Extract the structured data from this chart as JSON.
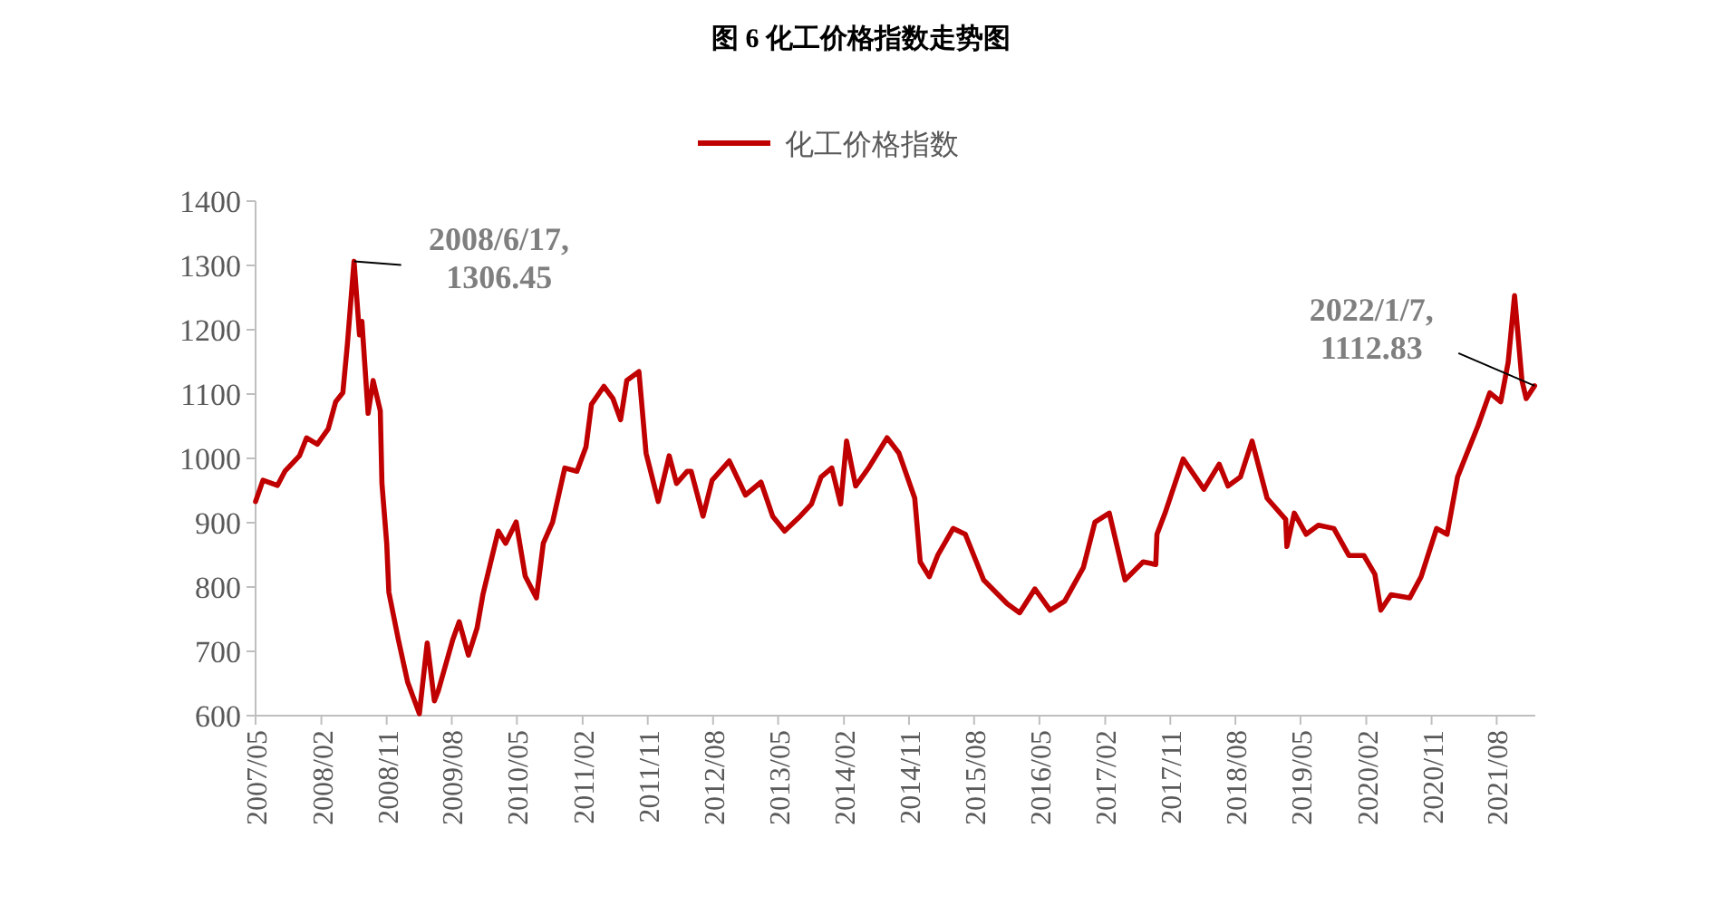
{
  "chart_data": {
    "type": "line",
    "title": "图 6 化工价格指数走势图",
    "x": [
      "2007-05-01",
      "2007-06-01",
      "2007-08-01",
      "2007-09-01",
      "2007-11-01",
      "2007-12-01",
      "2008-01-15",
      "2008-03-01",
      "2008-04-01",
      "2008-05-01",
      "2008-05-20",
      "2008-06-17",
      "2008-07-10",
      "2008-07-20",
      "2008-08-15",
      "2008-09-05",
      "2008-10-05",
      "2008-10-12",
      "2008-11-01",
      "2008-11-10",
      "2008-12-20",
      "2009-01-28",
      "2009-02-15",
      "2009-03-18",
      "2009-04-20",
      "2009-05-20",
      "2009-06-05",
      "2009-08-05",
      "2009-09-01",
      "2009-10-10",
      "2009-11-15",
      "2009-12-10",
      "2010-01-18",
      "2010-02-12",
      "2010-03-15",
      "2010-04-28",
      "2010-06-05",
      "2010-07-22",
      "2010-08-20",
      "2010-09-28",
      "2010-11-18",
      "2011-01-08",
      "2011-02-15",
      "2011-03-10",
      "2011-05-01",
      "2011-06-08",
      "2011-07-10",
      "2011-08-05",
      "2011-09-25",
      "2011-10-25",
      "2011-12-15",
      "2012-01-30",
      "2012-03-01",
      "2012-04-15",
      "2012-05-01",
      "2012-06-20",
      "2012-07-28",
      "2012-10-08",
      "2012-12-15",
      "2013-02-18",
      "2013-04-08",
      "2013-05-28",
      "2013-08-01",
      "2013-09-18",
      "2013-10-28",
      "2013-12-12",
      "2014-01-18",
      "2014-02-12",
      "2014-03-22",
      "2014-05-15",
      "2014-08-01",
      "2014-09-20",
      "2014-11-25",
      "2014-12-18",
      "2015-01-25",
      "2015-03-01",
      "2015-05-05",
      "2015-06-25",
      "2015-09-10",
      "2015-12-18",
      "2016-02-08",
      "2016-04-12",
      "2016-06-15",
      "2016-08-15",
      "2016-11-01",
      "2016-12-20",
      "2017-02-18",
      "2017-04-25",
      "2017-07-10",
      "2017-09-01",
      "2017-09-06",
      "2017-10-10",
      "2017-12-25",
      "2018-03-22",
      "2018-05-25",
      "2018-07-01",
      "2018-08-22",
      "2018-10-10",
      "2018-12-12",
      "2019-02-28",
      "2019-03-05",
      "2019-04-05",
      "2019-05-25",
      "2019-07-15",
      "2019-09-18",
      "2019-11-20",
      "2020-01-22",
      "2020-03-08",
      "2020-04-02",
      "2020-05-15",
      "2020-08-01",
      "2020-09-18",
      "2020-11-22",
      "2021-01-05",
      "2021-02-18",
      "2021-03-25",
      "2021-05-15",
      "2021-07-03",
      "2021-08-18",
      "2021-09-18",
      "2021-10-15",
      "2021-11-15",
      "2021-12-03",
      "2022-01-07"
    ],
    "series": [
      {
        "name": "化工价格指数",
        "color": "#c00000",
        "values": [
          933,
          966,
          958,
          980,
          1004,
          1032,
          1022,
          1046,
          1088,
          1102,
          1177,
          1306.45,
          1192,
          1213,
          1070,
          1121,
          1074,
          961,
          868,
          792,
          718,
          652,
          634,
          603,
          713,
          623,
          638,
          718,
          746,
          694,
          736,
          789,
          849,
          887,
          868,
          901,
          817,
          783,
          868,
          901,
          985,
          980,
          1018,
          1084,
          1112,
          1093,
          1060,
          1121,
          1135,
          1008,
          933,
          1004,
          961,
          980,
          980,
          910,
          966,
          996,
          943,
          963,
          910,
          887,
          910,
          929,
          971,
          985,
          929,
          1027,
          957,
          985,
          1032,
          1008,
          938,
          839,
          816,
          849,
          891,
          882,
          811,
          774,
          760,
          797,
          764,
          778,
          830,
          901,
          915,
          811,
          839,
          835,
          882,
          915,
          999,
          952,
          991,
          957,
          971,
          1027,
          938,
          905,
          863,
          915,
          882,
          896,
          891,
          849,
          849,
          820,
          764,
          788,
          783,
          816,
          891,
          882,
          971,
          1004,
          1051,
          1102,
          1088,
          1149,
          1253,
          1121,
          1093,
          1112.83
        ]
      }
    ],
    "xlim": [
      "2007-05-01",
      "2022-01-10"
    ],
    "xticks": [
      {
        "value": "2007-05",
        "label": "2007/05"
      },
      {
        "value": "2008-02",
        "label": "2008/02"
      },
      {
        "value": "2008-11",
        "label": "2008/11"
      },
      {
        "value": "2009-08",
        "label": "2009/08"
      },
      {
        "value": "2010-05",
        "label": "2010/05"
      },
      {
        "value": "2011-02",
        "label": "2011/02"
      },
      {
        "value": "2011-11",
        "label": "2011/11"
      },
      {
        "value": "2012-08",
        "label": "2012/08"
      },
      {
        "value": "2013-05",
        "label": "2013/05"
      },
      {
        "value": "2014-02",
        "label": "2014/02"
      },
      {
        "value": "2014-11",
        "label": "2014/11"
      },
      {
        "value": "2015-08",
        "label": "2015/08"
      },
      {
        "value": "2016-05",
        "label": "2016/05"
      },
      {
        "value": "2017-02",
        "label": "2017/02"
      },
      {
        "value": "2017-11",
        "label": "2017/11"
      },
      {
        "value": "2018-08",
        "label": "2018/08"
      },
      {
        "value": "2019-05",
        "label": "2019/05"
      },
      {
        "value": "2020-02",
        "label": "2020/02"
      },
      {
        "value": "2020-11",
        "label": "2020/11"
      },
      {
        "value": "2021-08",
        "label": "2021/08"
      }
    ],
    "ylim": [
      600,
      1400
    ],
    "yticks": [
      600,
      700,
      800,
      900,
      1000,
      1100,
      1200,
      1300,
      1400
    ],
    "annotations": [
      {
        "text": "2008/6/17,\n1306.45",
        "x": "2008-06-17",
        "y": 1306.45
      },
      {
        "text": "2022/1/7,\n1112.83",
        "x": "2022-01-07",
        "y": 1112.83
      }
    ],
    "legend": "top",
    "grid": false,
    "marker": "none",
    "line_style": "solid"
  }
}
